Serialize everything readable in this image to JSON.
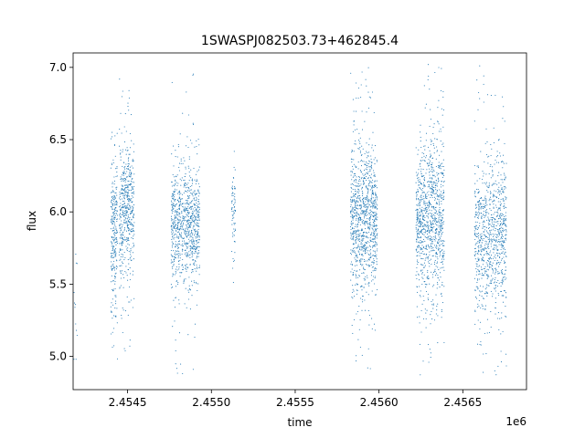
{
  "chart_data": {
    "type": "scatter",
    "title": "1SWASPJ082503.73+462845.4",
    "xlabel": "time",
    "ylabel": "flux",
    "x_offset_label": "1e6",
    "xlim": [
      2454175,
      2456880
    ],
    "ylim": [
      4.77,
      7.1
    ],
    "x_ticks": [
      2454500,
      2455000,
      2455500,
      2456000,
      2456500
    ],
    "x_tick_labels": [
      "2.4545",
      "2.4550",
      "2.4555",
      "2.4560",
      "2.4565"
    ],
    "y_ticks": [
      5.0,
      5.5,
      6.0,
      6.5,
      7.0
    ],
    "y_tick_labels": [
      "5.0",
      "5.5",
      "6.0",
      "6.5",
      "7.0"
    ],
    "marker_color": "#1f77b4",
    "grid": false,
    "series": [
      {
        "clusters": [
          {
            "x_range": [
              2454180,
              2454200
            ],
            "y_center": 5.45,
            "y_spread": 0.38,
            "y_range": [
              4.98,
              5.83
            ],
            "count": 12
          },
          {
            "x_range": [
              2454400,
              2454440
            ],
            "y_center": 5.85,
            "y_spread": 0.28,
            "y_range": [
              4.88,
              6.55
            ],
            "count": 260
          },
          {
            "x_range": [
              2454450,
              2454540
            ],
            "y_center": 5.98,
            "y_spread": 0.24,
            "y_range": [
              4.9,
              6.98
            ],
            "count": 520
          },
          {
            "x_range": [
              2454760,
              2454930
            ],
            "y_center": 5.92,
            "y_spread": 0.2,
            "y_range": [
              4.88,
              6.98
            ],
            "count": 900
          },
          {
            "x_range": [
              2455120,
              2455145
            ],
            "y_center": 5.98,
            "y_spread": 0.16,
            "y_range": [
              5.45,
              6.43
            ],
            "count": 70
          },
          {
            "x_range": [
              2455830,
              2455990
            ],
            "y_center": 5.95,
            "y_spread": 0.26,
            "y_range": [
              4.88,
              7.03
            ],
            "count": 1000
          },
          {
            "x_range": [
              2456220,
              2456390
            ],
            "y_center": 5.95,
            "y_spread": 0.26,
            "y_range": [
              4.87,
              7.02
            ],
            "count": 1000
          },
          {
            "x_range": [
              2456570,
              2456760
            ],
            "y_center": 5.85,
            "y_spread": 0.26,
            "y_range": [
              4.87,
              7.02
            ],
            "count": 900
          }
        ]
      }
    ]
  }
}
